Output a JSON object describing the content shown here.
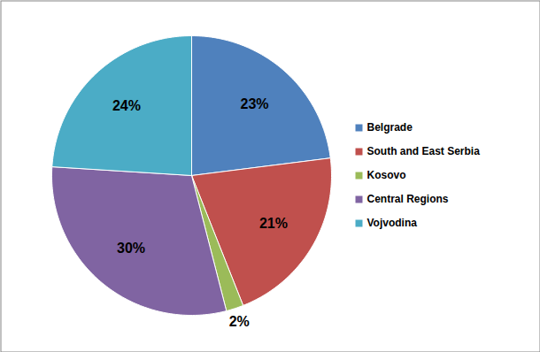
{
  "chart_data": {
    "type": "pie",
    "categories": [
      "Belgrade",
      "South and East Serbia",
      "Kosovo",
      "Central Regions",
      "Vojvodina"
    ],
    "values": [
      23,
      21,
      2,
      30,
      24
    ],
    "value_labels": [
      "23%",
      "21%",
      "2%",
      "30%",
      "24%"
    ],
    "colors": [
      "#4f81bd",
      "#c0504d",
      "#9bbb59",
      "#8064a2",
      "#4bacc6"
    ],
    "data_labels": true,
    "legend": "right"
  }
}
